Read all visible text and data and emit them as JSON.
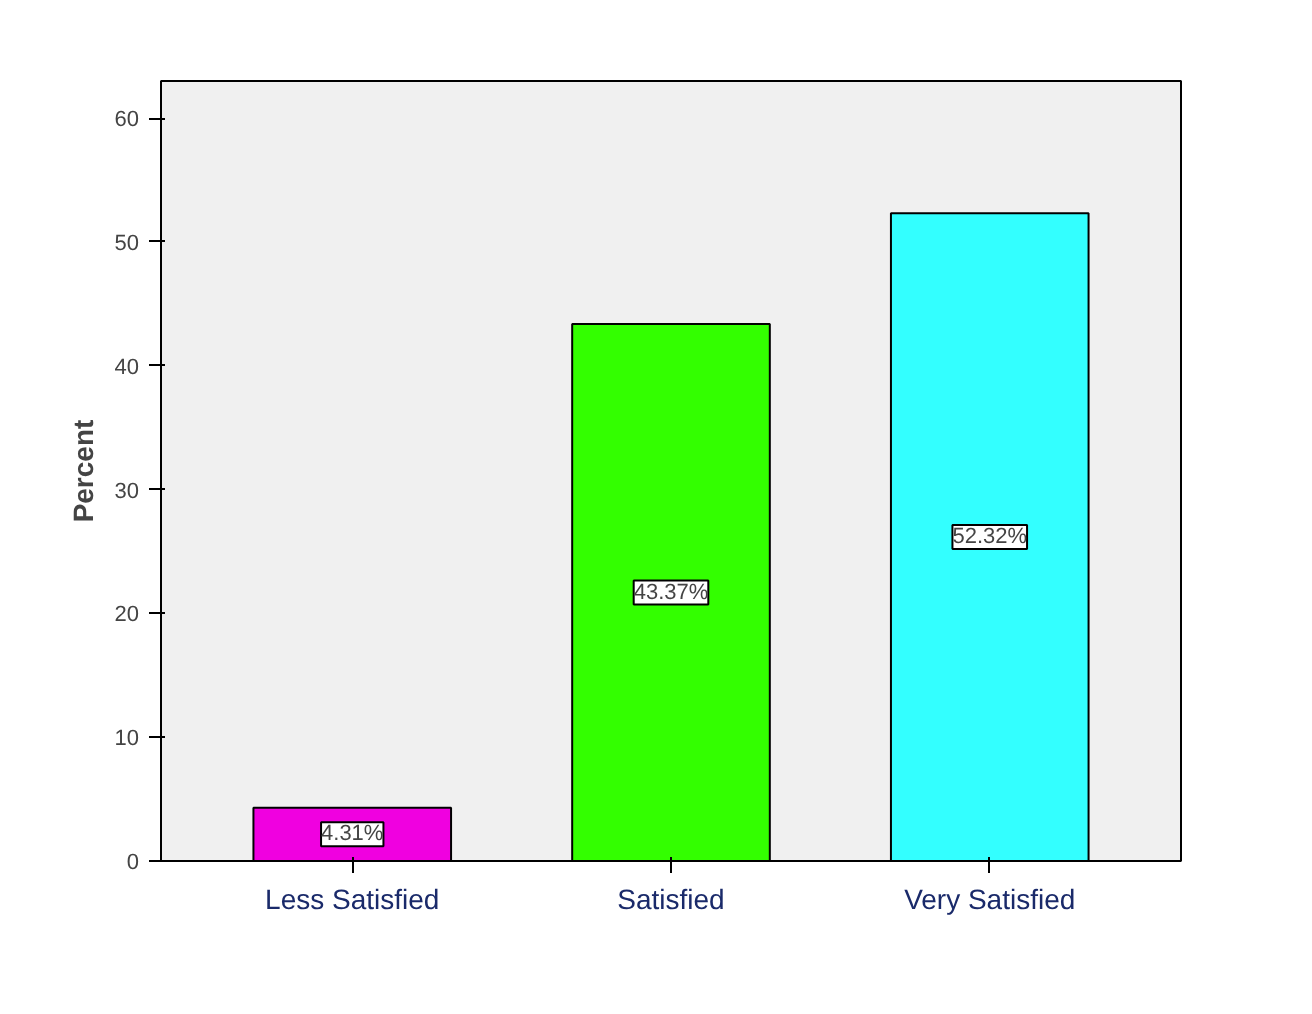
{
  "chart_data": {
    "type": "bar",
    "ylabel": "Percent",
    "categories": [
      "Less Satisfied",
      "Satisfied",
      "Very Satisfied"
    ],
    "values": [
      4.31,
      43.37,
      52.32
    ],
    "colors": [
      "#f000e0",
      "#33ff00",
      "#33ffff"
    ],
    "value_labels": [
      "4.31%",
      "43.37%",
      "52.32%"
    ],
    "ylim": [
      0,
      63
    ],
    "yticks": [
      0,
      10,
      20,
      30,
      40,
      50,
      60
    ],
    "grid": false
  }
}
